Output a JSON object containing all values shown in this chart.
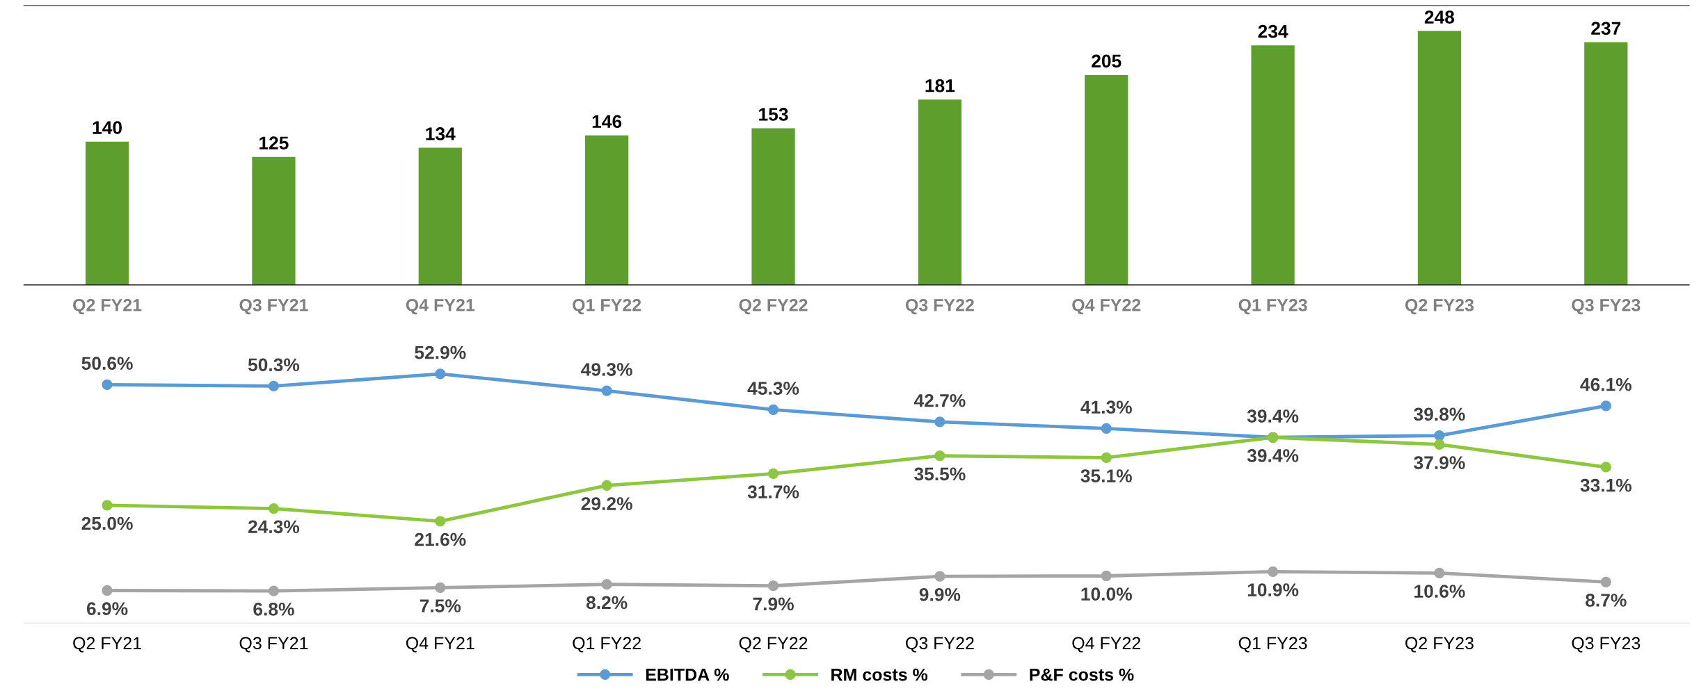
{
  "chart_data": [
    {
      "type": "bar",
      "categories": [
        "Q2 FY21",
        "Q3 FY21",
        "Q4 FY21",
        "Q1 FY22",
        "Q2 FY22",
        "Q3 FY22",
        "Q4 FY22",
        "Q1 FY23",
        "Q2 FY23",
        "Q3 FY23"
      ],
      "values": [
        140,
        125,
        134,
        146,
        153,
        181,
        205,
        234,
        248,
        237
      ],
      "color": "#5e9e2c",
      "data_labels": true,
      "grid": false,
      "legend": false
    },
    {
      "type": "line",
      "categories": [
        "Q2 FY21",
        "Q3 FY21",
        "Q4 FY21",
        "Q1 FY22",
        "Q2 FY22",
        "Q3 FY22",
        "Q4 FY22",
        "Q1 FY23",
        "Q2 FY23",
        "Q3 FY23"
      ],
      "series": [
        {
          "name": "EBITDA %",
          "color": "#5b9bd5",
          "values": [
            50.6,
            50.3,
            52.9,
            49.3,
            45.3,
            42.7,
            41.3,
            39.4,
            39.8,
            46.1
          ],
          "value_labels": [
            "50.6%",
            "50.3%",
            "52.9%",
            "49.3%",
            "45.3%",
            "42.7%",
            "41.3%",
            "39.4%",
            "39.8%",
            "46.1%"
          ]
        },
        {
          "name": "RM costs %",
          "color": "#8dc63f",
          "values": [
            25.0,
            24.3,
            21.6,
            29.2,
            31.7,
            35.5,
            35.1,
            39.4,
            37.9,
            33.1
          ],
          "value_labels": [
            "25.0%",
            "24.3%",
            "21.6%",
            "29.2%",
            "31.7%",
            "35.5%",
            "35.1%",
            "39.4%",
            "37.9%",
            "33.1%"
          ]
        },
        {
          "name": "P&F costs %",
          "color": "#a5a5a5",
          "values": [
            6.9,
            6.8,
            7.5,
            8.2,
            7.9,
            9.9,
            10.0,
            10.9,
            10.6,
            8.7
          ],
          "value_labels": [
            "6.9%",
            "6.8%",
            "7.5%",
            "8.2%",
            "7.9%",
            "9.9%",
            "10.0%",
            "10.9%",
            "10.6%",
            "8.7%"
          ]
        }
      ],
      "marker": "circle",
      "line_style": "solid",
      "legend": "bottom",
      "grid": false
    }
  ]
}
